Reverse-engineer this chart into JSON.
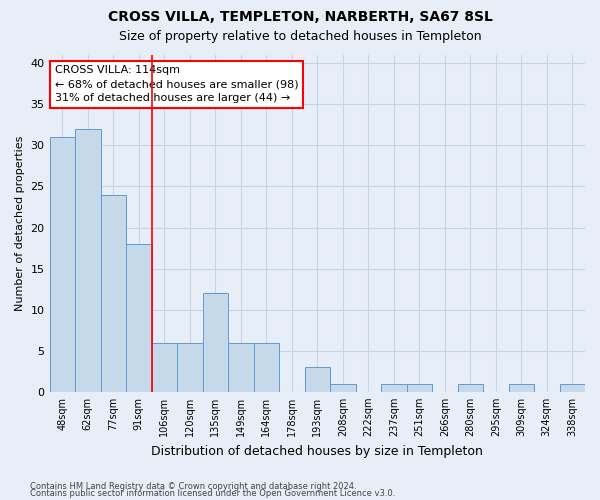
{
  "title": "CROSS VILLA, TEMPLETON, NARBERTH, SA67 8SL",
  "subtitle": "Size of property relative to detached houses in Templeton",
  "xlabel": "Distribution of detached houses by size in Templeton",
  "ylabel": "Number of detached properties",
  "categories": [
    "48sqm",
    "62sqm",
    "77sqm",
    "91sqm",
    "106sqm",
    "120sqm",
    "135sqm",
    "149sqm",
    "164sqm",
    "178sqm",
    "193sqm",
    "208sqm",
    "222sqm",
    "237sqm",
    "251sqm",
    "266sqm",
    "280sqm",
    "295sqm",
    "309sqm",
    "324sqm",
    "338sqm"
  ],
  "values": [
    31,
    32,
    24,
    18,
    6,
    6,
    12,
    6,
    6,
    0,
    3,
    1,
    0,
    1,
    1,
    0,
    1,
    0,
    1,
    0,
    1
  ],
  "bar_color": "#c6d9ea",
  "bar_edge_color": "#5b9bd5",
  "grid_color": "#c8d4e8",
  "annotation_text": "CROSS VILLA: 114sqm\n← 68% of detached houses are smaller (98)\n31% of detached houses are larger (44) →",
  "annotation_box_color": "white",
  "annotation_box_edge": "red",
  "vline_x_index": 3.5,
  "vline_color": "red",
  "ylim": [
    0,
    41
  ],
  "yticks": [
    0,
    5,
    10,
    15,
    20,
    25,
    30,
    35,
    40
  ],
  "footer_line1": "Contains HM Land Registry data © Crown copyright and database right 2024.",
  "footer_line2": "Contains public sector information licensed under the Open Government Licence v3.0.",
  "bg_color": "#e8eef8",
  "plot_bg_color": "#e8eef8",
  "title_fontsize": 10,
  "subtitle_fontsize": 9,
  "annotation_fontsize": 8,
  "axis_fontsize": 8,
  "tick_fontsize": 7,
  "footer_fontsize": 6
}
